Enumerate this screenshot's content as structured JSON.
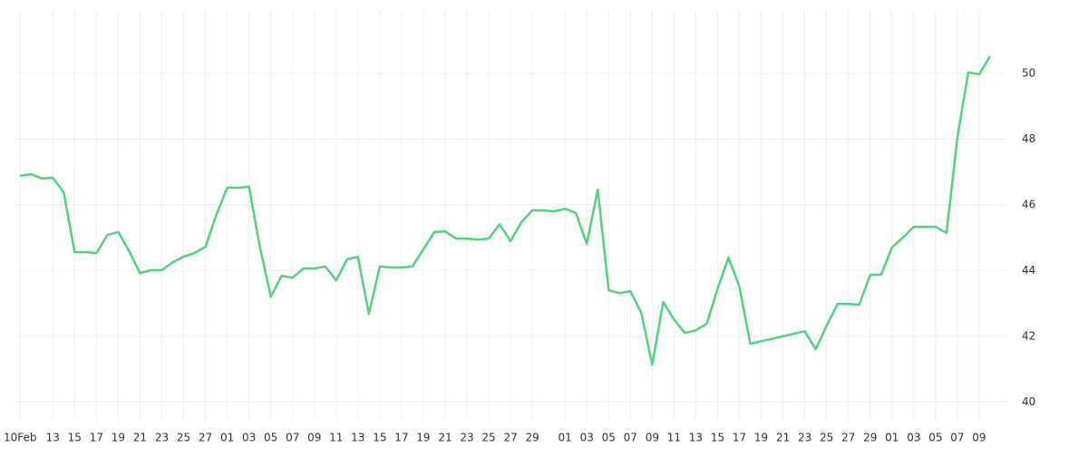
{
  "chart_data": {
    "type": "line",
    "x": [
      0,
      1,
      2,
      3,
      4,
      5,
      6,
      7,
      8,
      9,
      10,
      11,
      12,
      13,
      14,
      15,
      16,
      17,
      18,
      19,
      20,
      21,
      22,
      23,
      24,
      25,
      26,
      27,
      28,
      29,
      30,
      31,
      32,
      33,
      34,
      35,
      36,
      37,
      38,
      39,
      40,
      41,
      42,
      43,
      44,
      45,
      46,
      47,
      48,
      49,
      50,
      51,
      52,
      53,
      54,
      55,
      56,
      57,
      58,
      59,
      60,
      61,
      62,
      63,
      64,
      65,
      66,
      67,
      72,
      73,
      74,
      75,
      76,
      77,
      78,
      79,
      80,
      81,
      82,
      83,
      84,
      85,
      86,
      87,
      88,
      89
    ],
    "series": [
      {
        "color": "#55d17f",
        "values": [
          46.88,
          46.93,
          46.8,
          46.82,
          46.38,
          44.56,
          44.56,
          44.53,
          45.08,
          45.17,
          44.59,
          43.92,
          44.01,
          44.01,
          44.25,
          44.42,
          44.53,
          44.72,
          45.69,
          46.52,
          46.52,
          46.55,
          44.72,
          43.2,
          43.84,
          43.78,
          44.06,
          44.06,
          44.12,
          43.7,
          44.34,
          44.42,
          42.68,
          44.12,
          44.09,
          44.09,
          44.12,
          44.64,
          45.17,
          45.19,
          44.97,
          44.97,
          44.94,
          44.97,
          45.41,
          44.89,
          45.47,
          45.83,
          45.83,
          45.8,
          45.88,
          45.75,
          44.81,
          46.46,
          43.4,
          43.31,
          43.37,
          42.71,
          41.13,
          43.04,
          42.51,
          42.1,
          42.18,
          42.38,
          43.45,
          44.39,
          43.51,
          41.77,
          42.15,
          41.6,
          42.32,
          42.98,
          42.98,
          42.96,
          43.87,
          43.87,
          44.7,
          45.0,
          45.33,
          45.33,
          45.33,
          45.14,
          48.04,
          50.03,
          49.97,
          50.52
        ]
      }
    ],
    "xlim": [
      -0.6,
      90.5
    ],
    "xticks": [
      {
        "value": 0,
        "label": "10Feb"
      },
      {
        "value": 3,
        "label": "13"
      },
      {
        "value": 5,
        "label": "15"
      },
      {
        "value": 7,
        "label": "17"
      },
      {
        "value": 9,
        "label": "19"
      },
      {
        "value": 11,
        "label": "21"
      },
      {
        "value": 13,
        "label": "23"
      },
      {
        "value": 15,
        "label": "25"
      },
      {
        "value": 17,
        "label": "27"
      },
      {
        "value": 19,
        "label": "01"
      },
      {
        "value": 21,
        "label": "03"
      },
      {
        "value": 23,
        "label": "05"
      },
      {
        "value": 25,
        "label": "07"
      },
      {
        "value": 27,
        "label": "09"
      },
      {
        "value": 29,
        "label": "11"
      },
      {
        "value": 31,
        "label": "13"
      },
      {
        "value": 33,
        "label": "15"
      },
      {
        "value": 35,
        "label": "17"
      },
      {
        "value": 37,
        "label": "19"
      },
      {
        "value": 39,
        "label": "21"
      },
      {
        "value": 41,
        "label": "23"
      },
      {
        "value": 43,
        "label": "25"
      },
      {
        "value": 45,
        "label": "27"
      },
      {
        "value": 47,
        "label": "29"
      },
      {
        "value": 50,
        "label": "01"
      },
      {
        "value": 52,
        "label": "03"
      },
      {
        "value": 54,
        "label": "05"
      },
      {
        "value": 56,
        "label": "07"
      },
      {
        "value": 58,
        "label": "09"
      },
      {
        "value": 60,
        "label": "11"
      },
      {
        "value": 62,
        "label": "13"
      },
      {
        "value": 64,
        "label": "15"
      },
      {
        "value": 66,
        "label": "17"
      },
      {
        "value": 68,
        "label": "19"
      },
      {
        "value": 70,
        "label": "21"
      },
      {
        "value": 72,
        "label": "23"
      },
      {
        "value": 74,
        "label": "25"
      },
      {
        "value": 76,
        "label": "27"
      },
      {
        "value": 78,
        "label": "29"
      },
      {
        "value": 80,
        "label": "01"
      },
      {
        "value": 82,
        "label": "03"
      },
      {
        "value": 84,
        "label": "05"
      },
      {
        "value": 86,
        "label": "07"
      },
      {
        "value": 88,
        "label": "09"
      }
    ],
    "ylim": [
      39.4,
      51.9
    ],
    "yticks": [
      40,
      42,
      44,
      46,
      48,
      50
    ],
    "grid": true
  }
}
